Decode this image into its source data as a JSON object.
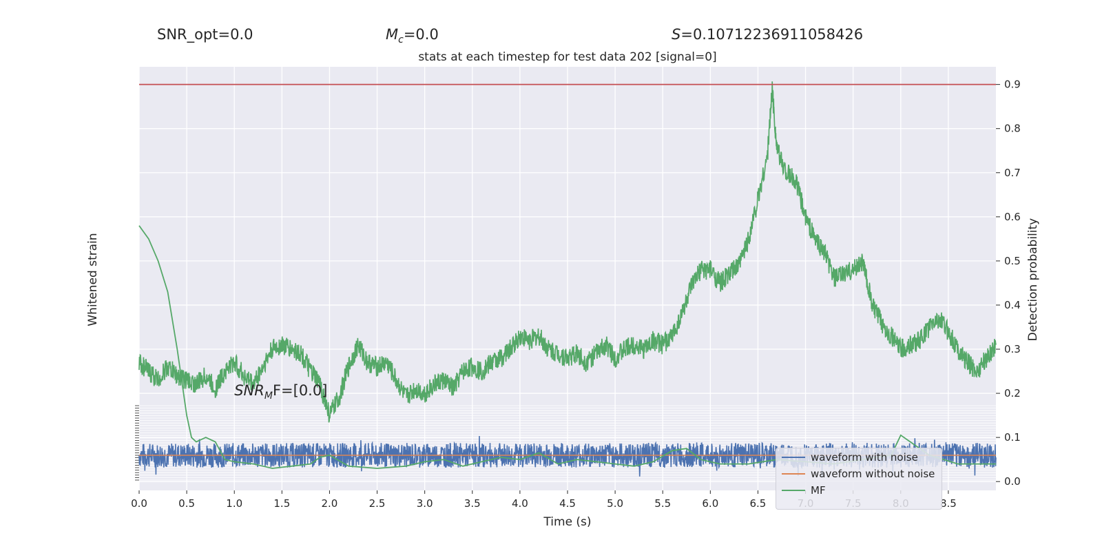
{
  "header": {
    "snr_opt": "SNR_opt=0.0",
    "mc_prefix": "M",
    "mc_sub": "c",
    "mc_rest": "=0.0",
    "s_prefix": "S",
    "s_rest": "=0.10712236911058426",
    "title": "stats at each timestep for test data 202 [signal=0]"
  },
  "chart_data": {
    "type": "line",
    "title": "stats at each timestep for test data 202 [signal=0]",
    "xlabel": "Time (s)",
    "ylabel_left": "Whitened strain",
    "ylabel_right": "Detection probability",
    "xlim": [
      0.0,
      9.0
    ],
    "x_ticks": [
      "0.0",
      "0.5",
      "1.0",
      "1.5",
      "2.0",
      "2.5",
      "3.0",
      "3.5",
      "4.0",
      "4.5",
      "5.0",
      "5.5",
      "6.0",
      "6.5",
      "7.0",
      "7.5",
      "8.0",
      "8.5"
    ],
    "ylim_right": [
      -0.02,
      0.94
    ],
    "y_ticks_right": [
      "0.0",
      "0.1",
      "0.2",
      "0.3",
      "0.4",
      "0.5",
      "0.6",
      "0.7",
      "0.8",
      "0.9"
    ],
    "ylim_left": [
      -1.0,
      2.0
    ],
    "threshold": 0.9,
    "snr_mf_label_prefix": "SNR",
    "snr_mf_label_sub": "M",
    "snr_mf_label_rest": "F=[0.0]",
    "series": [
      {
        "name": "waveform with noise",
        "color": "#4c72b0"
      },
      {
        "name": "waveform without noise",
        "color": "#dd8452"
      },
      {
        "name": "MF",
        "color": "#55a868"
      }
    ],
    "detection_probability": {
      "color": "#55a868",
      "x": [
        0.0,
        0.1,
        0.2,
        0.3,
        0.4,
        0.5,
        0.6,
        0.7,
        0.8,
        0.9,
        1.0,
        1.1,
        1.2,
        1.3,
        1.4,
        1.5,
        1.6,
        1.7,
        1.8,
        1.9,
        2.0,
        2.1,
        2.2,
        2.3,
        2.4,
        2.5,
        2.6,
        2.7,
        2.8,
        2.9,
        3.0,
        3.1,
        3.2,
        3.3,
        3.4,
        3.5,
        3.6,
        3.7,
        3.8,
        3.9,
        4.0,
        4.1,
        4.2,
        4.3,
        4.4,
        4.5,
        4.6,
        4.7,
        4.8,
        4.9,
        5.0,
        5.1,
        5.2,
        5.3,
        5.4,
        5.5,
        5.6,
        5.7,
        5.8,
        5.9,
        6.0,
        6.1,
        6.2,
        6.3,
        6.4,
        6.5,
        6.6,
        6.65,
        6.7,
        6.8,
        6.9,
        7.0,
        7.1,
        7.2,
        7.3,
        7.4,
        7.5,
        7.6,
        7.7,
        7.8,
        7.9,
        8.0,
        8.1,
        8.2,
        8.3,
        8.4,
        8.5,
        8.6,
        8.7,
        8.8,
        8.9,
        9.0
      ],
      "y": [
        0.27,
        0.25,
        0.23,
        0.26,
        0.24,
        0.23,
        0.22,
        0.24,
        0.21,
        0.25,
        0.27,
        0.24,
        0.22,
        0.26,
        0.3,
        0.31,
        0.3,
        0.29,
        0.25,
        0.22,
        0.15,
        0.19,
        0.26,
        0.31,
        0.27,
        0.26,
        0.27,
        0.23,
        0.19,
        0.21,
        0.2,
        0.22,
        0.23,
        0.21,
        0.25,
        0.26,
        0.25,
        0.27,
        0.28,
        0.3,
        0.33,
        0.32,
        0.33,
        0.3,
        0.29,
        0.28,
        0.29,
        0.27,
        0.29,
        0.31,
        0.28,
        0.3,
        0.31,
        0.3,
        0.32,
        0.31,
        0.33,
        0.38,
        0.44,
        0.48,
        0.48,
        0.45,
        0.47,
        0.49,
        0.55,
        0.64,
        0.74,
        0.89,
        0.75,
        0.7,
        0.68,
        0.6,
        0.55,
        0.52,
        0.46,
        0.47,
        0.48,
        0.5,
        0.4,
        0.36,
        0.33,
        0.3,
        0.31,
        0.32,
        0.35,
        0.37,
        0.34,
        0.3,
        0.27,
        0.25,
        0.28,
        0.31
      ]
    },
    "mf": {
      "color": "#55a868",
      "x": [
        0.0,
        0.1,
        0.2,
        0.3,
        0.4,
        0.5,
        0.55,
        0.6,
        0.65,
        0.7,
        0.8,
        0.9,
        1.0,
        1.2,
        1.4,
        1.6,
        1.8,
        1.9,
        2.0,
        2.2,
        2.5,
        2.8,
        3.0,
        3.2,
        3.4,
        3.6,
        3.8,
        4.0,
        4.2,
        4.4,
        4.6,
        4.8,
        5.0,
        5.2,
        5.4,
        5.6,
        5.75,
        5.9,
        6.1,
        6.4,
        6.7,
        7.0,
        7.3,
        7.6,
        7.9,
        8.0,
        8.1,
        8.3,
        8.6,
        9.0
      ],
      "y": [
        0.58,
        0.55,
        0.5,
        0.43,
        0.3,
        0.15,
        0.1,
        0.09,
        0.095,
        0.1,
        0.09,
        0.05,
        0.045,
        0.04,
        0.03,
        0.035,
        0.04,
        0.055,
        0.06,
        0.035,
        0.03,
        0.035,
        0.045,
        0.05,
        0.035,
        0.045,
        0.055,
        0.05,
        0.065,
        0.04,
        0.05,
        0.045,
        0.04,
        0.035,
        0.045,
        0.07,
        0.075,
        0.05,
        0.04,
        0.04,
        0.05,
        0.045,
        0.04,
        0.05,
        0.06,
        0.105,
        0.09,
        0.06,
        0.04,
        0.04
      ]
    },
    "waveform_with_noise": {
      "color": "#4c72b0",
      "center": 0.0,
      "amplitude": 0.5
    },
    "waveform_without_noise": {
      "color": "#dd8452",
      "value": 0.0
    }
  }
}
